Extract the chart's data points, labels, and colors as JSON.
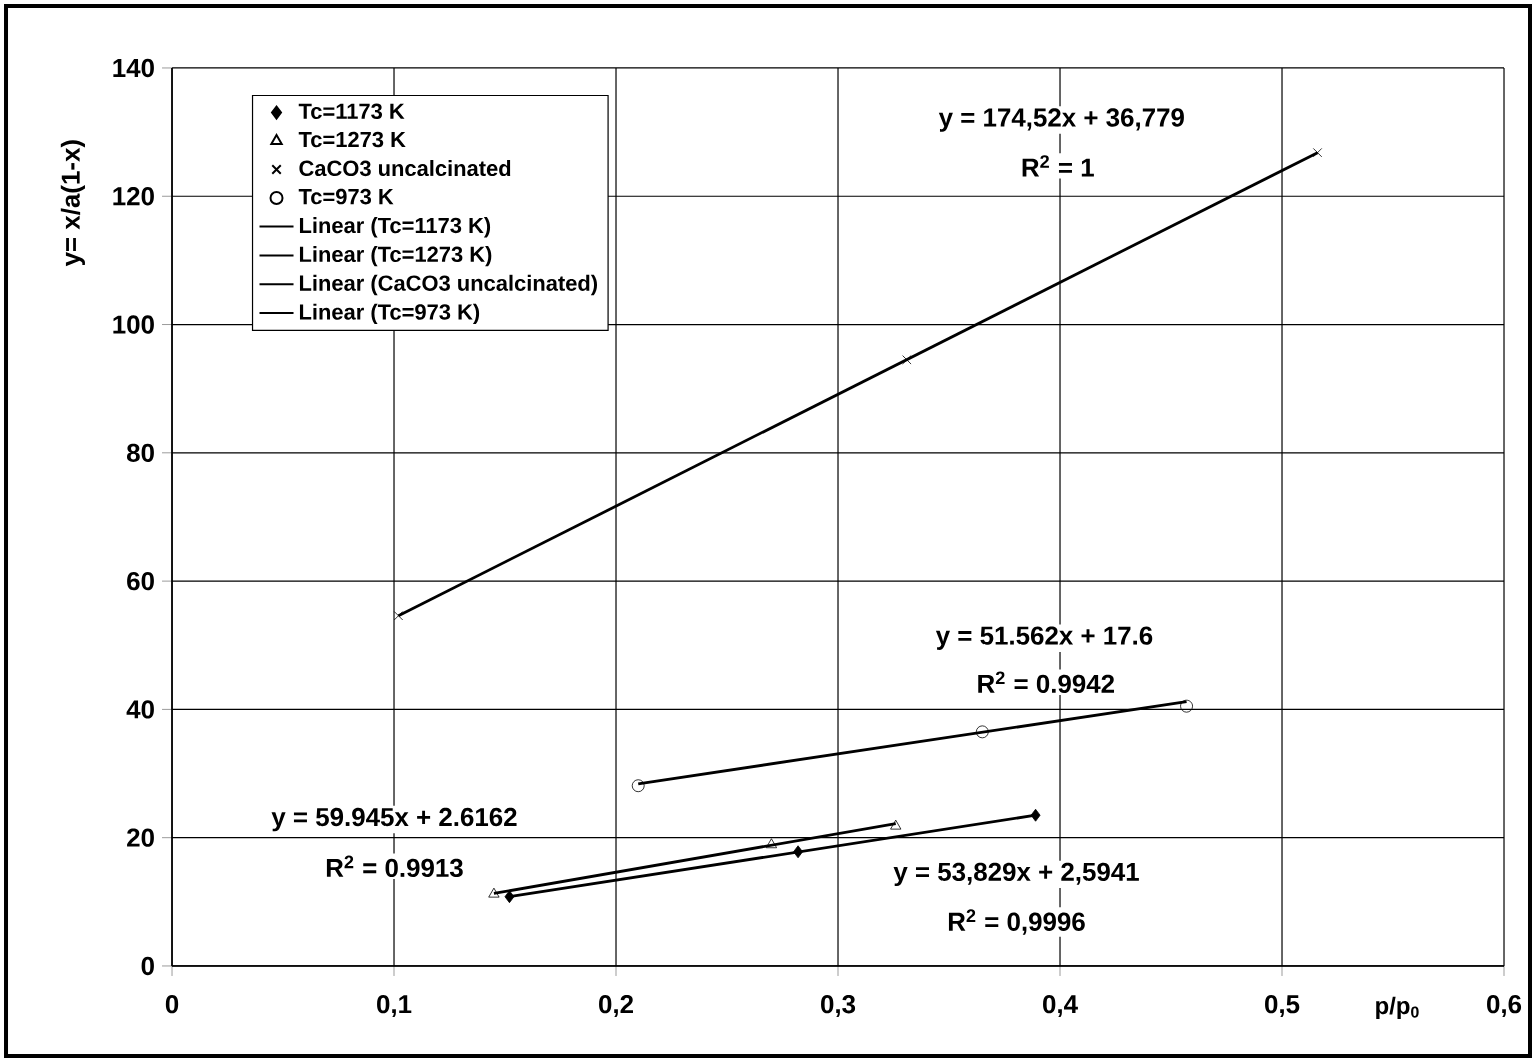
{
  "chart_data": {
    "type": "scatter",
    "xlabel": "p/p$_{0}$",
    "ylabel": "y= x/a(1-x)",
    "xlim": [
      0,
      0.6
    ],
    "ylim": [
      0,
      140
    ],
    "xticks": [
      0,
      {
        "value": 0.1,
        "label": "0,1"
      },
      {
        "value": 0.2,
        "label": "0,2"
      },
      {
        "value": 0.3,
        "label": "0,3"
      },
      {
        "value": 0.4,
        "label": "0,4"
      },
      {
        "value": 0.5,
        "label": "0,5"
      },
      {
        "value": 0.6,
        "label": "0,6"
      }
    ],
    "yticks": [
      0,
      20,
      40,
      60,
      80,
      100,
      120,
      140
    ],
    "grid": true,
    "legend": "top left",
    "series": [
      {
        "name": "Tc=1173 K",
        "marker": "diamond",
        "color": "#000000",
        "x": [
          0.152,
          0.282,
          0.389
        ],
        "values": [
          10.8,
          17.8,
          23.5
        ]
      },
      {
        "name": "Tc=1273 K",
        "marker": "triangle",
        "color": "#000000",
        "x": [
          0.145,
          0.27,
          0.326
        ],
        "values": [
          11.2,
          18.9,
          21.8
        ]
      },
      {
        "name": "CaCO3 uncalcinated",
        "marker": "cross",
        "color": "#000000",
        "x": [
          0.102,
          0.331,
          0.516
        ],
        "values": [
          54.6,
          94.5,
          126.8
        ]
      },
      {
        "name": "Tc=973 K",
        "marker": "circle",
        "color": "#000000",
        "x": [
          0.21,
          0.365,
          0.457
        ],
        "values": [
          28.1,
          36.5,
          40.5
        ]
      },
      {
        "name": "Linear (Tc=1173 K)",
        "type": "line",
        "color": "#000000",
        "x": [
          0.152,
          0.389
        ],
        "values": [
          10.8,
          23.5
        ]
      },
      {
        "name": "Linear (Tc=1273 K)",
        "type": "line",
        "color": "#000000",
        "x": [
          0.145,
          0.326
        ],
        "values": [
          11.3,
          22.2
        ]
      },
      {
        "name": "Linear (CaCO3 uncalcinated)",
        "type": "line",
        "color": "#000000",
        "x": [
          0.102,
          0.516
        ],
        "values": [
          54.6,
          126.8
        ]
      },
      {
        "name": "Linear (Tc=973 K)",
        "type": "line",
        "color": "#000000",
        "x": [
          0.21,
          0.457
        ],
        "values": [
          28.4,
          41.2
        ]
      }
    ],
    "annotations": [
      "y = 174,52x + 36,779",
      "R$^{2}$ = 1",
      "y = 51.562x + 17.6",
      "R$^{2}$ = 0.9942",
      "y = 59.945x + 2.6162",
      "R$^{2}$ = 0.9913",
      "y = 53,829x + 2,5941",
      "R$^{2}$ = 0,9996"
    ]
  }
}
